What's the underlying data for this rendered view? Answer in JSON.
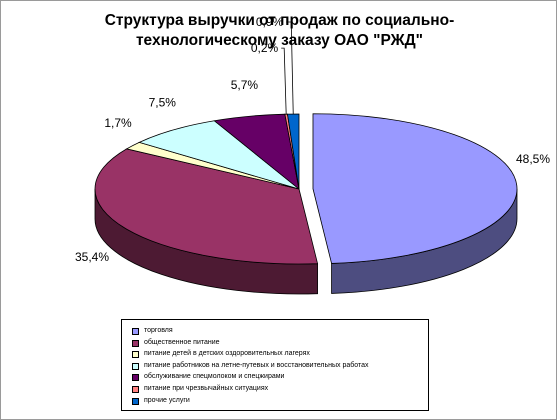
{
  "chart_data": {
    "type": "pie",
    "title": "Структура выручки от продаж по социально-технологическому заказу ОАО \"РЖД\"",
    "series": [
      {
        "name": "торговля",
        "value": 48.5,
        "label": "48,5%",
        "color": "#9999ff"
      },
      {
        "name": "общественное питание",
        "value": 35.4,
        "label": "35,4%",
        "color": "#993366"
      },
      {
        "name": "питание детей в детских оздоровительных лагерях",
        "value": 1.7,
        "label": "1,7%",
        "color": "#ffffcc"
      },
      {
        "name": "питание работников на летне-путевых и восстановительных работах",
        "value": 7.5,
        "label": "7,5%",
        "color": "#ccffff"
      },
      {
        "name": "обслуживание спецмолоком и спецжирами",
        "value": 5.7,
        "label": "5,7%",
        "color": "#660066"
      },
      {
        "name": "питание при чрезвычайных ситуациях",
        "value": 0.2,
        "label": "0,2%",
        "color": "#ff8080"
      },
      {
        "name": "прочие услуги",
        "value": 0.9,
        "label": "0,9%",
        "color": "#0066cc"
      }
    ],
    "legend_position": "bottom",
    "style": "3d-exploded-pie"
  }
}
